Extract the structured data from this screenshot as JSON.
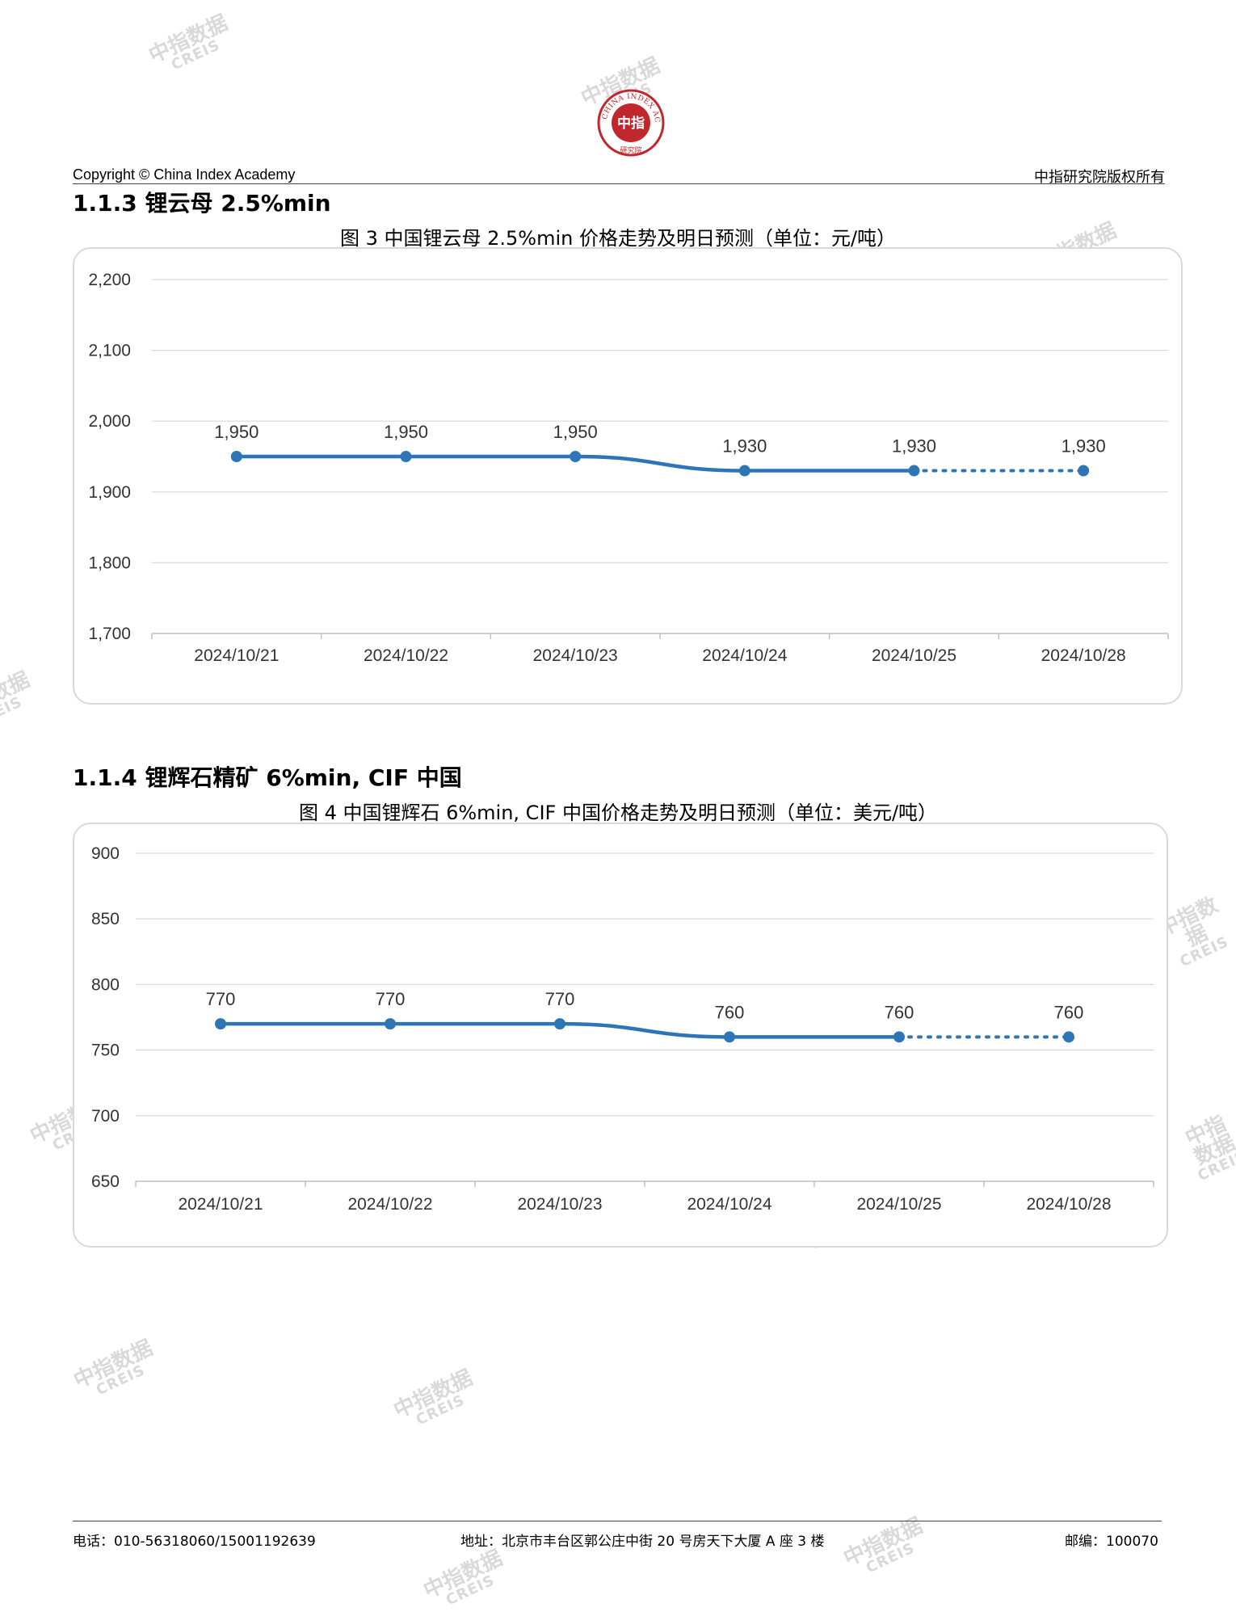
{
  "header": {
    "copyright": "Copyright © China Index Academy",
    "rights": "中指研究院版权所有",
    "logo_text": "中指",
    "logo_ring_text": "CHINA INDEX ACADEMY",
    "logo_bottom_text": "研究院"
  },
  "watermark": {
    "cn": "中指数据",
    "en": "CREIS"
  },
  "sections": [
    {
      "title": "1.1.3 锂云母 2.5%min",
      "figure_title": "图 3 中国锂云母 2.5%min 价格走势及明日预测（单位：元/吨）"
    },
    {
      "title": "1.1.4 锂辉石精矿 6%min, CIF 中国",
      "figure_title": "图 4 中国锂辉石 6%min, CIF 中国价格走势及明日预测（单位：美元/吨）"
    }
  ],
  "chart_data": [
    {
      "type": "line",
      "categories": [
        "2024/10/21",
        "2024/10/22",
        "2024/10/23",
        "2024/10/24",
        "2024/10/25",
        "2024/10/28"
      ],
      "values": [
        1950,
        1950,
        1950,
        1930,
        1930,
        1930
      ],
      "value_labels": [
        "1,950",
        "1,950",
        "1,950",
        "1,930",
        "1,930",
        "1,930"
      ],
      "forecast_from_index": 4,
      "ylim": [
        1700,
        2200
      ],
      "yticks": [
        1700,
        1800,
        1900,
        2000,
        2100,
        2200
      ],
      "ytick_labels": [
        "1,700",
        "1,800",
        "1,900",
        "2,000",
        "2,100",
        "2,200"
      ],
      "grid": true,
      "line_color": "#2e75b6"
    },
    {
      "type": "line",
      "categories": [
        "2024/10/21",
        "2024/10/22",
        "2024/10/23",
        "2024/10/24",
        "2024/10/25",
        "2024/10/28"
      ],
      "values": [
        770,
        770,
        770,
        760,
        760,
        760
      ],
      "value_labels": [
        "770",
        "770",
        "770",
        "760",
        "760",
        "760"
      ],
      "forecast_from_index": 4,
      "ylim": [
        650,
        900
      ],
      "yticks": [
        650,
        700,
        750,
        800,
        850,
        900
      ],
      "ytick_labels": [
        "650",
        "700",
        "750",
        "800",
        "850",
        "900"
      ],
      "grid": true,
      "line_color": "#2e75b6"
    }
  ],
  "footer": {
    "phone": "电话：010-56318060/15001192639",
    "address": "地址：北京市丰台区郭公庄中街 20 号房天下大厦 A 座 3 楼",
    "postcode": "邮编：100070"
  }
}
